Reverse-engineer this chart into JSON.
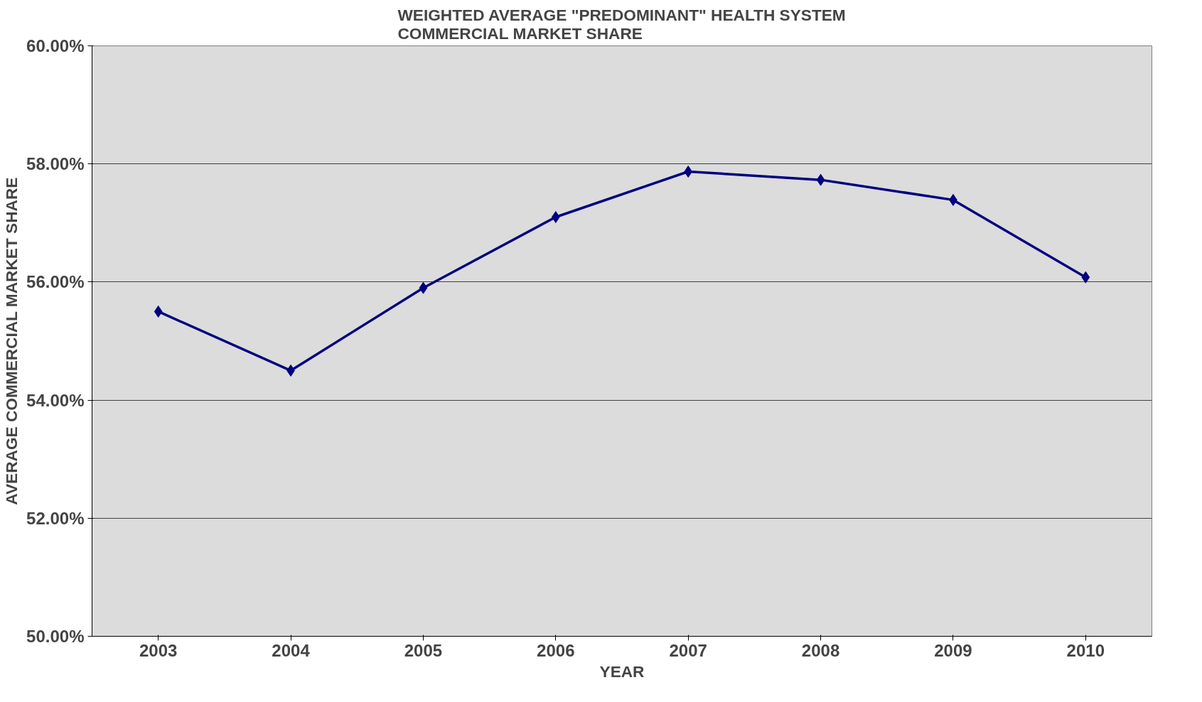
{
  "chart_data": {
    "type": "line",
    "title": "WEIGHTED AVERAGE \"PREDOMINANT\" HEALTH SYSTEM\nCOMMERCIAL MARKET SHARE",
    "xlabel": "YEAR",
    "ylabel": "AVERAGE COMMERCIAL MARKET SHARE",
    "categories": [
      "2003",
      "2004",
      "2005",
      "2006",
      "2007",
      "2008",
      "2009",
      "2010"
    ],
    "series": [
      {
        "color": "#000080",
        "values": [
          55.5,
          54.5,
          55.9,
          57.1,
          57.87,
          57.73,
          57.39,
          56.08
        ]
      }
    ],
    "ylim": [
      50,
      60
    ],
    "yticks": [
      {
        "value": 50,
        "label": "50.00%"
      },
      {
        "value": 52,
        "label": "52.00%"
      },
      {
        "value": 54,
        "label": "54.00%"
      },
      {
        "value": 56,
        "label": "56.00%"
      },
      {
        "value": 58,
        "label": "58.00%"
      },
      {
        "value": 60,
        "label": "60.00%"
      }
    ],
    "grid": "y",
    "marker": "diamond",
    "line_style": "solid"
  }
}
